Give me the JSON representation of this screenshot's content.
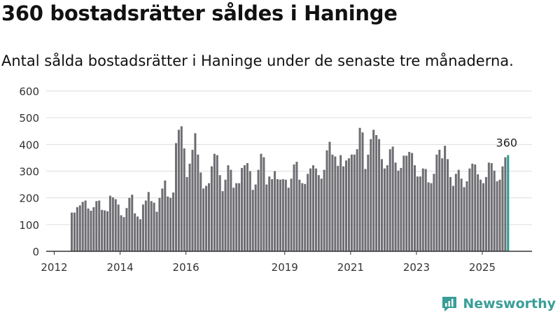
{
  "header": {
    "title": "360 bostadsrätter såldes i Haninge",
    "subtitle": "Antal sålda bostadsrätter i Haninge under de senaste tre månaderna."
  },
  "brand": {
    "name": "Newsworthy",
    "color": "#3a9e98",
    "icon": "newsworthy-logo-icon"
  },
  "colors": {
    "bar": "#6e6d72",
    "highlight": "#2a9d94",
    "grid": "#dddddd",
    "axis": "#333333"
  },
  "chart_data": {
    "type": "bar",
    "unit": "monthly",
    "x_start": "2012-07",
    "x_ticks": [
      "2012",
      "2014",
      "2016",
      "2019",
      "2021",
      "2023",
      "2025"
    ],
    "x_tick_months": [
      "2012-01",
      "2014-01",
      "2016-01",
      "2019-01",
      "2021-01",
      "2023-01",
      "2025-01"
    ],
    "y_ticks": [
      0,
      100,
      200,
      300,
      400,
      500,
      600
    ],
    "ylim": [
      0,
      600
    ],
    "grid": true,
    "values": [
      145,
      145,
      165,
      172,
      185,
      190,
      160,
      152,
      165,
      188,
      190,
      155,
      153,
      150,
      208,
      202,
      195,
      175,
      135,
      128,
      162,
      200,
      212,
      142,
      130,
      120,
      175,
      190,
      222,
      188,
      182,
      148,
      200,
      235,
      265,
      205,
      200,
      220,
      405,
      455,
      468,
      385,
      278,
      328,
      380,
      442,
      362,
      295,
      235,
      245,
      255,
      318,
      365,
      360,
      285,
      225,
      268,
      322,
      305,
      238,
      255,
      255,
      312,
      322,
      330,
      300,
      230,
      250,
      305,
      365,
      352,
      250,
      280,
      270,
      300,
      270,
      268,
      270,
      268,
      238,
      272,
      325,
      335,
      268,
      255,
      252,
      290,
      310,
      322,
      310,
      285,
      272,
      305,
      378,
      410,
      362,
      355,
      320,
      360,
      318,
      340,
      348,
      362,
      362,
      382,
      462,
      445,
      308,
      362,
      420,
      455,
      435,
      420,
      345,
      310,
      322,
      382,
      392,
      332,
      302,
      312,
      358,
      358,
      372,
      368,
      322,
      280,
      280,
      310,
      308,
      258,
      255,
      290,
      362,
      380,
      348,
      395,
      345,
      278,
      245,
      290,
      305,
      272,
      240,
      262,
      310,
      328,
      325,
      288,
      268,
      255,
      278,
      332,
      330,
      302,
      262,
      268,
      318,
      352,
      360
    ],
    "highlight_label": "360"
  }
}
